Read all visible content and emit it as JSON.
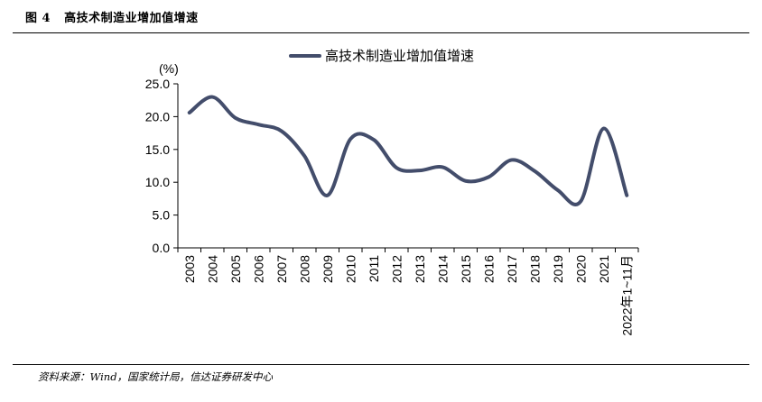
{
  "figure": {
    "label": "图  4",
    "title": "高技术制造业增加值增速",
    "source": "资料来源：Wind，国家统计局，信达证券研发中心"
  },
  "colors": {
    "series": "#434d6b",
    "axis": "#000000"
  },
  "chart_data": {
    "type": "line",
    "smooth": true,
    "title": "",
    "xlabel": "",
    "ylabel": "(%)",
    "ylim": [
      0,
      25
    ],
    "yticks": [
      "0.0",
      "5.0",
      "10.0",
      "15.0",
      "20.0",
      "25.0"
    ],
    "grid": false,
    "legend_position": "top-center",
    "categories": [
      "2003",
      "2004",
      "2005",
      "2006",
      "2007",
      "2008",
      "2009",
      "2010",
      "2011",
      "2012",
      "2013",
      "2014",
      "2015",
      "2016",
      "2017",
      "2018",
      "2019",
      "2020",
      "2021",
      "2022年1~11月"
    ],
    "series": [
      {
        "name": "高技术制造业增加值增速",
        "values": [
          20.6,
          23.0,
          19.8,
          18.8,
          17.8,
          14.0,
          8.0,
          16.6,
          16.5,
          12.2,
          11.8,
          12.3,
          10.2,
          10.8,
          13.4,
          11.7,
          8.8,
          7.1,
          18.2,
          8.0
        ]
      }
    ]
  }
}
